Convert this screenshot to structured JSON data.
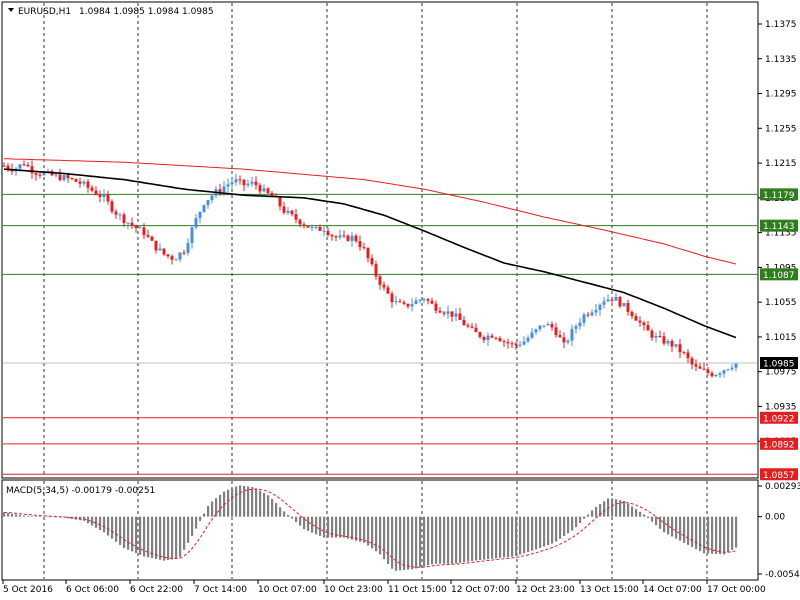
{
  "header": {
    "symbol": "EURUSD,H1",
    "ohlc": "1.0984 1.0985 1.0984 1.0985"
  },
  "macd": {
    "label": "MACD(5,34,5) -0.00179 -0.00251",
    "axis_ticks": [
      "0.00293",
      "0.00",
      "-0.00548"
    ]
  },
  "colors": {
    "bull": "#4a90d9",
    "bear": "#e02020",
    "ma_fast": "#000000",
    "ma_slow": "#e02020",
    "green_level": "#2e7d1e",
    "red_level": "#e02020",
    "bid_line": "#c0c0c0",
    "histogram": "#808080"
  },
  "chart_data": {
    "type": "candlestick",
    "title": "EURUSD,H1",
    "price_axis_ticks": [
      "1.1375",
      "1.1335",
      "1.1295",
      "1.1255",
      "1.1215",
      "1.1175",
      "1.1135",
      "1.1095",
      "1.1055",
      "1.1015",
      "1.0975",
      "1.0935",
      "1.0895"
    ],
    "ylim": [
      1.0855,
      1.1398
    ],
    "time_axis_labels": [
      "5 Oct 2016",
      "6 Oct 06:00",
      "6 Oct 22:00",
      "7 Oct 14:00",
      "10 Oct 07:00",
      "10 Oct 23:00",
      "11 Oct 15:00",
      "12 Oct 07:00",
      "12 Oct 23:00",
      "13 Oct 15:00",
      "14 Oct 07:00",
      "17 Oct 00:00"
    ],
    "horizontal_levels": [
      {
        "value": "1.1179",
        "kind": "support-resistance",
        "color": "green"
      },
      {
        "value": "1.1143",
        "kind": "support-resistance",
        "color": "green"
      },
      {
        "value": "1.1087",
        "kind": "support-resistance",
        "color": "green"
      },
      {
        "value": "1.0985",
        "kind": "bid",
        "color": "black"
      },
      {
        "value": "1.0922",
        "kind": "support-resistance",
        "color": "red"
      },
      {
        "value": "1.0892",
        "kind": "support-resistance",
        "color": "red"
      },
      {
        "value": "1.0857",
        "kind": "support-resistance",
        "color": "red"
      }
    ],
    "close_path": [
      [
        0,
        1.1212
      ],
      [
        10,
        1.1208
      ],
      [
        20,
        1.1215
      ],
      [
        30,
        1.1205
      ],
      [
        40,
        1.1203
      ],
      [
        50,
        1.12
      ],
      [
        60,
        1.1198
      ],
      [
        70,
        1.1195
      ],
      [
        80,
        1.119
      ],
      [
        90,
        1.1182
      ],
      [
        100,
        1.1175
      ],
      [
        110,
        1.116
      ],
      [
        120,
        1.115
      ],
      [
        130,
        1.1142
      ],
      [
        140,
        1.1135
      ],
      [
        150,
        1.112
      ],
      [
        160,
        1.111
      ],
      [
        170,
        1.1105
      ],
      [
        180,
        1.1115
      ],
      [
        190,
        1.1145
      ],
      [
        200,
        1.117
      ],
      [
        210,
        1.118
      ],
      [
        220,
        1.1188
      ],
      [
        230,
        1.1195
      ],
      [
        240,
        1.119
      ],
      [
        250,
        1.1192
      ],
      [
        260,
        1.1182
      ],
      [
        270,
        1.1175
      ],
      [
        280,
        1.116
      ],
      [
        290,
        1.1152
      ],
      [
        300,
        1.1145
      ],
      [
        310,
        1.1138
      ],
      [
        320,
        1.114
      ],
      [
        330,
        1.113
      ],
      [
        340,
        1.1128
      ],
      [
        350,
        1.113
      ],
      [
        360,
        1.1115
      ],
      [
        370,
        1.109
      ],
      [
        380,
        1.107
      ],
      [
        390,
        1.1055
      ],
      [
        400,
        1.105
      ],
      [
        410,
        1.1055
      ],
      [
        420,
        1.106
      ],
      [
        430,
        1.105
      ],
      [
        440,
        1.1045
      ],
      [
        450,
        1.104
      ],
      [
        460,
        1.103
      ],
      [
        470,
        1.102
      ],
      [
        480,
        1.1015
      ],
      [
        490,
        1.1018
      ],
      [
        500,
        1.101
      ],
      [
        510,
        1.1005
      ],
      [
        520,
        1.101
      ],
      [
        530,
        1.102
      ],
      [
        540,
        1.103
      ],
      [
        550,
        1.1025
      ],
      [
        560,
        1.1005
      ],
      [
        570,
        1.1025
      ],
      [
        580,
        1.104
      ],
      [
        590,
        1.1048
      ],
      [
        600,
        1.1058
      ],
      [
        610,
        1.106
      ],
      [
        620,
        1.105
      ],
      [
        630,
        1.104
      ],
      [
        640,
        1.1025
      ],
      [
        650,
        1.1015
      ],
      [
        660,
        1.101
      ],
      [
        670,
        1.1005
      ],
      [
        680,
        1.0995
      ],
      [
        690,
        1.098
      ],
      [
        700,
        1.0975
      ],
      [
        710,
        1.0972
      ],
      [
        720,
        1.0978
      ],
      [
        730,
        1.0984
      ]
    ],
    "ma_fast_path": [
      [
        0,
        1.1208
      ],
      [
        60,
        1.1203
      ],
      [
        120,
        1.1196
      ],
      [
        180,
        1.1185
      ],
      [
        240,
        1.1178
      ],
      [
        300,
        1.1175
      ],
      [
        340,
        1.1168
      ],
      [
        380,
        1.1155
      ],
      [
        420,
        1.1137
      ],
      [
        460,
        1.1118
      ],
      [
        500,
        1.11
      ],
      [
        540,
        1.109
      ],
      [
        580,
        1.1078
      ],
      [
        620,
        1.1066
      ],
      [
        660,
        1.1048
      ],
      [
        700,
        1.1028
      ],
      [
        735,
        1.1013
      ]
    ],
    "ma_slow_path": [
      [
        0,
        1.122
      ],
      [
        60,
        1.1218
      ],
      [
        120,
        1.1216
      ],
      [
        180,
        1.1212
      ],
      [
        240,
        1.1208
      ],
      [
        300,
        1.1202
      ],
      [
        360,
        1.1196
      ],
      [
        420,
        1.1185
      ],
      [
        480,
        1.117
      ],
      [
        540,
        1.1153
      ],
      [
        600,
        1.1138
      ],
      [
        660,
        1.1122
      ],
      [
        700,
        1.1108
      ],
      [
        735,
        1.1098
      ]
    ]
  },
  "macd_data": {
    "type": "histogram",
    "ylim": [
      -0.00548,
      0.00293
    ],
    "hist_path": [
      [
        0,
        0.0004
      ],
      [
        20,
        0.0001
      ],
      [
        40,
        0.0
      ],
      [
        60,
        -0.0001
      ],
      [
        80,
        -0.0004
      ],
      [
        100,
        -0.0015
      ],
      [
        120,
        -0.003
      ],
      [
        140,
        -0.0038
      ],
      [
        160,
        -0.0042
      ],
      [
        175,
        -0.004
      ],
      [
        190,
        -0.0015
      ],
      [
        205,
        0.0012
      ],
      [
        220,
        0.0024
      ],
      [
        235,
        0.003
      ],
      [
        250,
        0.0028
      ],
      [
        265,
        0.002
      ],
      [
        280,
        0.0005
      ],
      [
        300,
        -0.0012
      ],
      [
        320,
        -0.002
      ],
      [
        340,
        -0.002
      ],
      [
        360,
        -0.0025
      ],
      [
        375,
        -0.0035
      ],
      [
        390,
        -0.0052
      ],
      [
        410,
        -0.005
      ],
      [
        430,
        -0.0045
      ],
      [
        450,
        -0.0045
      ],
      [
        470,
        -0.0042
      ],
      [
        490,
        -0.004
      ],
      [
        510,
        -0.0038
      ],
      [
        530,
        -0.0032
      ],
      [
        550,
        -0.0025
      ],
      [
        570,
        -0.0012
      ],
      [
        590,
        0.0008
      ],
      [
        605,
        0.0018
      ],
      [
        620,
        0.0015
      ],
      [
        640,
        0.0002
      ],
      [
        660,
        -0.0015
      ],
      [
        680,
        -0.0025
      ],
      [
        700,
        -0.0035
      ],
      [
        720,
        -0.0036
      ],
      [
        735,
        -0.0028
      ]
    ]
  }
}
